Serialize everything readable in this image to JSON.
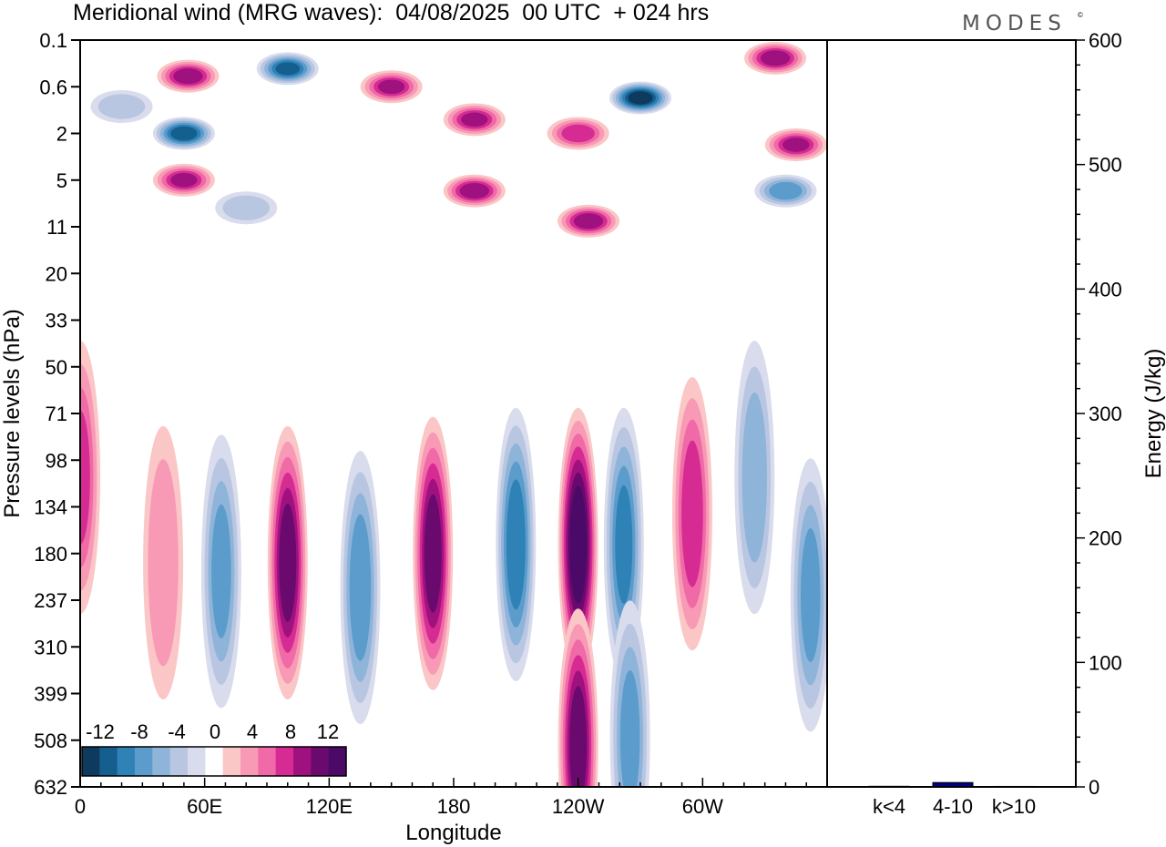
{
  "chart_data": [
    {
      "type": "heatmap",
      "title": "Meridional wind (MRG waves):  04/08/2025  00 UTC  + 024 hrs",
      "xlabel": "Longitude",
      "ylabel": "Pressure levels (hPa)",
      "x_ticks": [
        "0",
        "60E",
        "120E",
        "180",
        "120W",
        "60W"
      ],
      "x_tick_degrees": [
        0,
        60,
        120,
        180,
        240,
        300
      ],
      "xlim": [
        0,
        360
      ],
      "y_ticks": [
        "0.1",
        "0.6",
        "2",
        "5",
        "11",
        "20",
        "33",
        "50",
        "71",
        "98",
        "134",
        "180",
        "237",
        "310",
        "399",
        "508",
        "632"
      ],
      "colorbar": {
        "labels": [
          "-12",
          "-8",
          "-4",
          "0",
          "4",
          "8",
          "12"
        ],
        "levels": [
          -14,
          -12,
          -10,
          -8,
          -6,
          -4,
          -2,
          2,
          4,
          6,
          8,
          10,
          12,
          14
        ],
        "colors": [
          "#0e3a5e",
          "#155f8f",
          "#2e82b6",
          "#5c9ccc",
          "#8fb4d9",
          "#b8c6e2",
          "#d8dcec",
          "#ffffff",
          "#fbc6c6",
          "#f89ab6",
          "#ef6aa6",
          "#d52b92",
          "#a01180",
          "#6b0a6e",
          "#4c0a68"
        ]
      },
      "features": [
        {
          "lon": 52,
          "level": 0.4,
          "value": 11
        },
        {
          "lon": 100,
          "level": 0.3,
          "value": -12
        },
        {
          "lon": 150,
          "level": 0.6,
          "value": 10
        },
        {
          "lon": 270,
          "level": 0.8,
          "value": -15
        },
        {
          "lon": 335,
          "level": 0.2,
          "value": 11
        },
        {
          "lon": 20,
          "level": 1.0,
          "value": -5
        },
        {
          "lon": 50,
          "level": 2.0,
          "value": -13
        },
        {
          "lon": 190,
          "level": 1.4,
          "value": 10
        },
        {
          "lon": 240,
          "level": 2.0,
          "value": 9
        },
        {
          "lon": 345,
          "level": 2.5,
          "value": 10
        },
        {
          "lon": 50,
          "level": 5.0,
          "value": 10
        },
        {
          "lon": 190,
          "level": 6.0,
          "value": 11
        },
        {
          "lon": 340,
          "level": 6.0,
          "value": -9
        },
        {
          "lon": 80,
          "level": 8.0,
          "value": -5
        },
        {
          "lon": 245,
          "level": 10.0,
          "value": 11
        },
        {
          "lon": 0,
          "level": 110,
          "value": 8
        },
        {
          "lon": 40,
          "level": 190,
          "value": 5
        },
        {
          "lon": 68,
          "level": 200,
          "value": -8
        },
        {
          "lon": 100,
          "level": 190,
          "value": 13
        },
        {
          "lon": 135,
          "level": 220,
          "value": -9
        },
        {
          "lon": 170,
          "level": 180,
          "value": 13
        },
        {
          "lon": 210,
          "level": 170,
          "value": -11
        },
        {
          "lon": 240,
          "level": 170,
          "value": 16
        },
        {
          "lon": 262,
          "level": 170,
          "value": -10
        },
        {
          "lon": 295,
          "level": 140,
          "value": 9
        },
        {
          "lon": 325,
          "level": 110,
          "value": -7
        },
        {
          "lon": 352,
          "level": 230,
          "value": -8
        },
        {
          "lon": 240,
          "level": 520,
          "value": 13
        },
        {
          "lon": 265,
          "level": 500,
          "value": -8
        }
      ]
    },
    {
      "type": "bar",
      "categories": [
        "k<4",
        "4-10",
        "k>10"
      ],
      "values": [
        0.5,
        3.5,
        0.4
      ],
      "ylabel": "Energy (J/kg)",
      "ylim": [
        0,
        600
      ],
      "y_ticks": [
        "0",
        "100",
        "200",
        "300",
        "400",
        "500",
        "600"
      ],
      "bar_color": "#000080"
    }
  ],
  "brand": "MODES",
  "brand_mark": "©"
}
